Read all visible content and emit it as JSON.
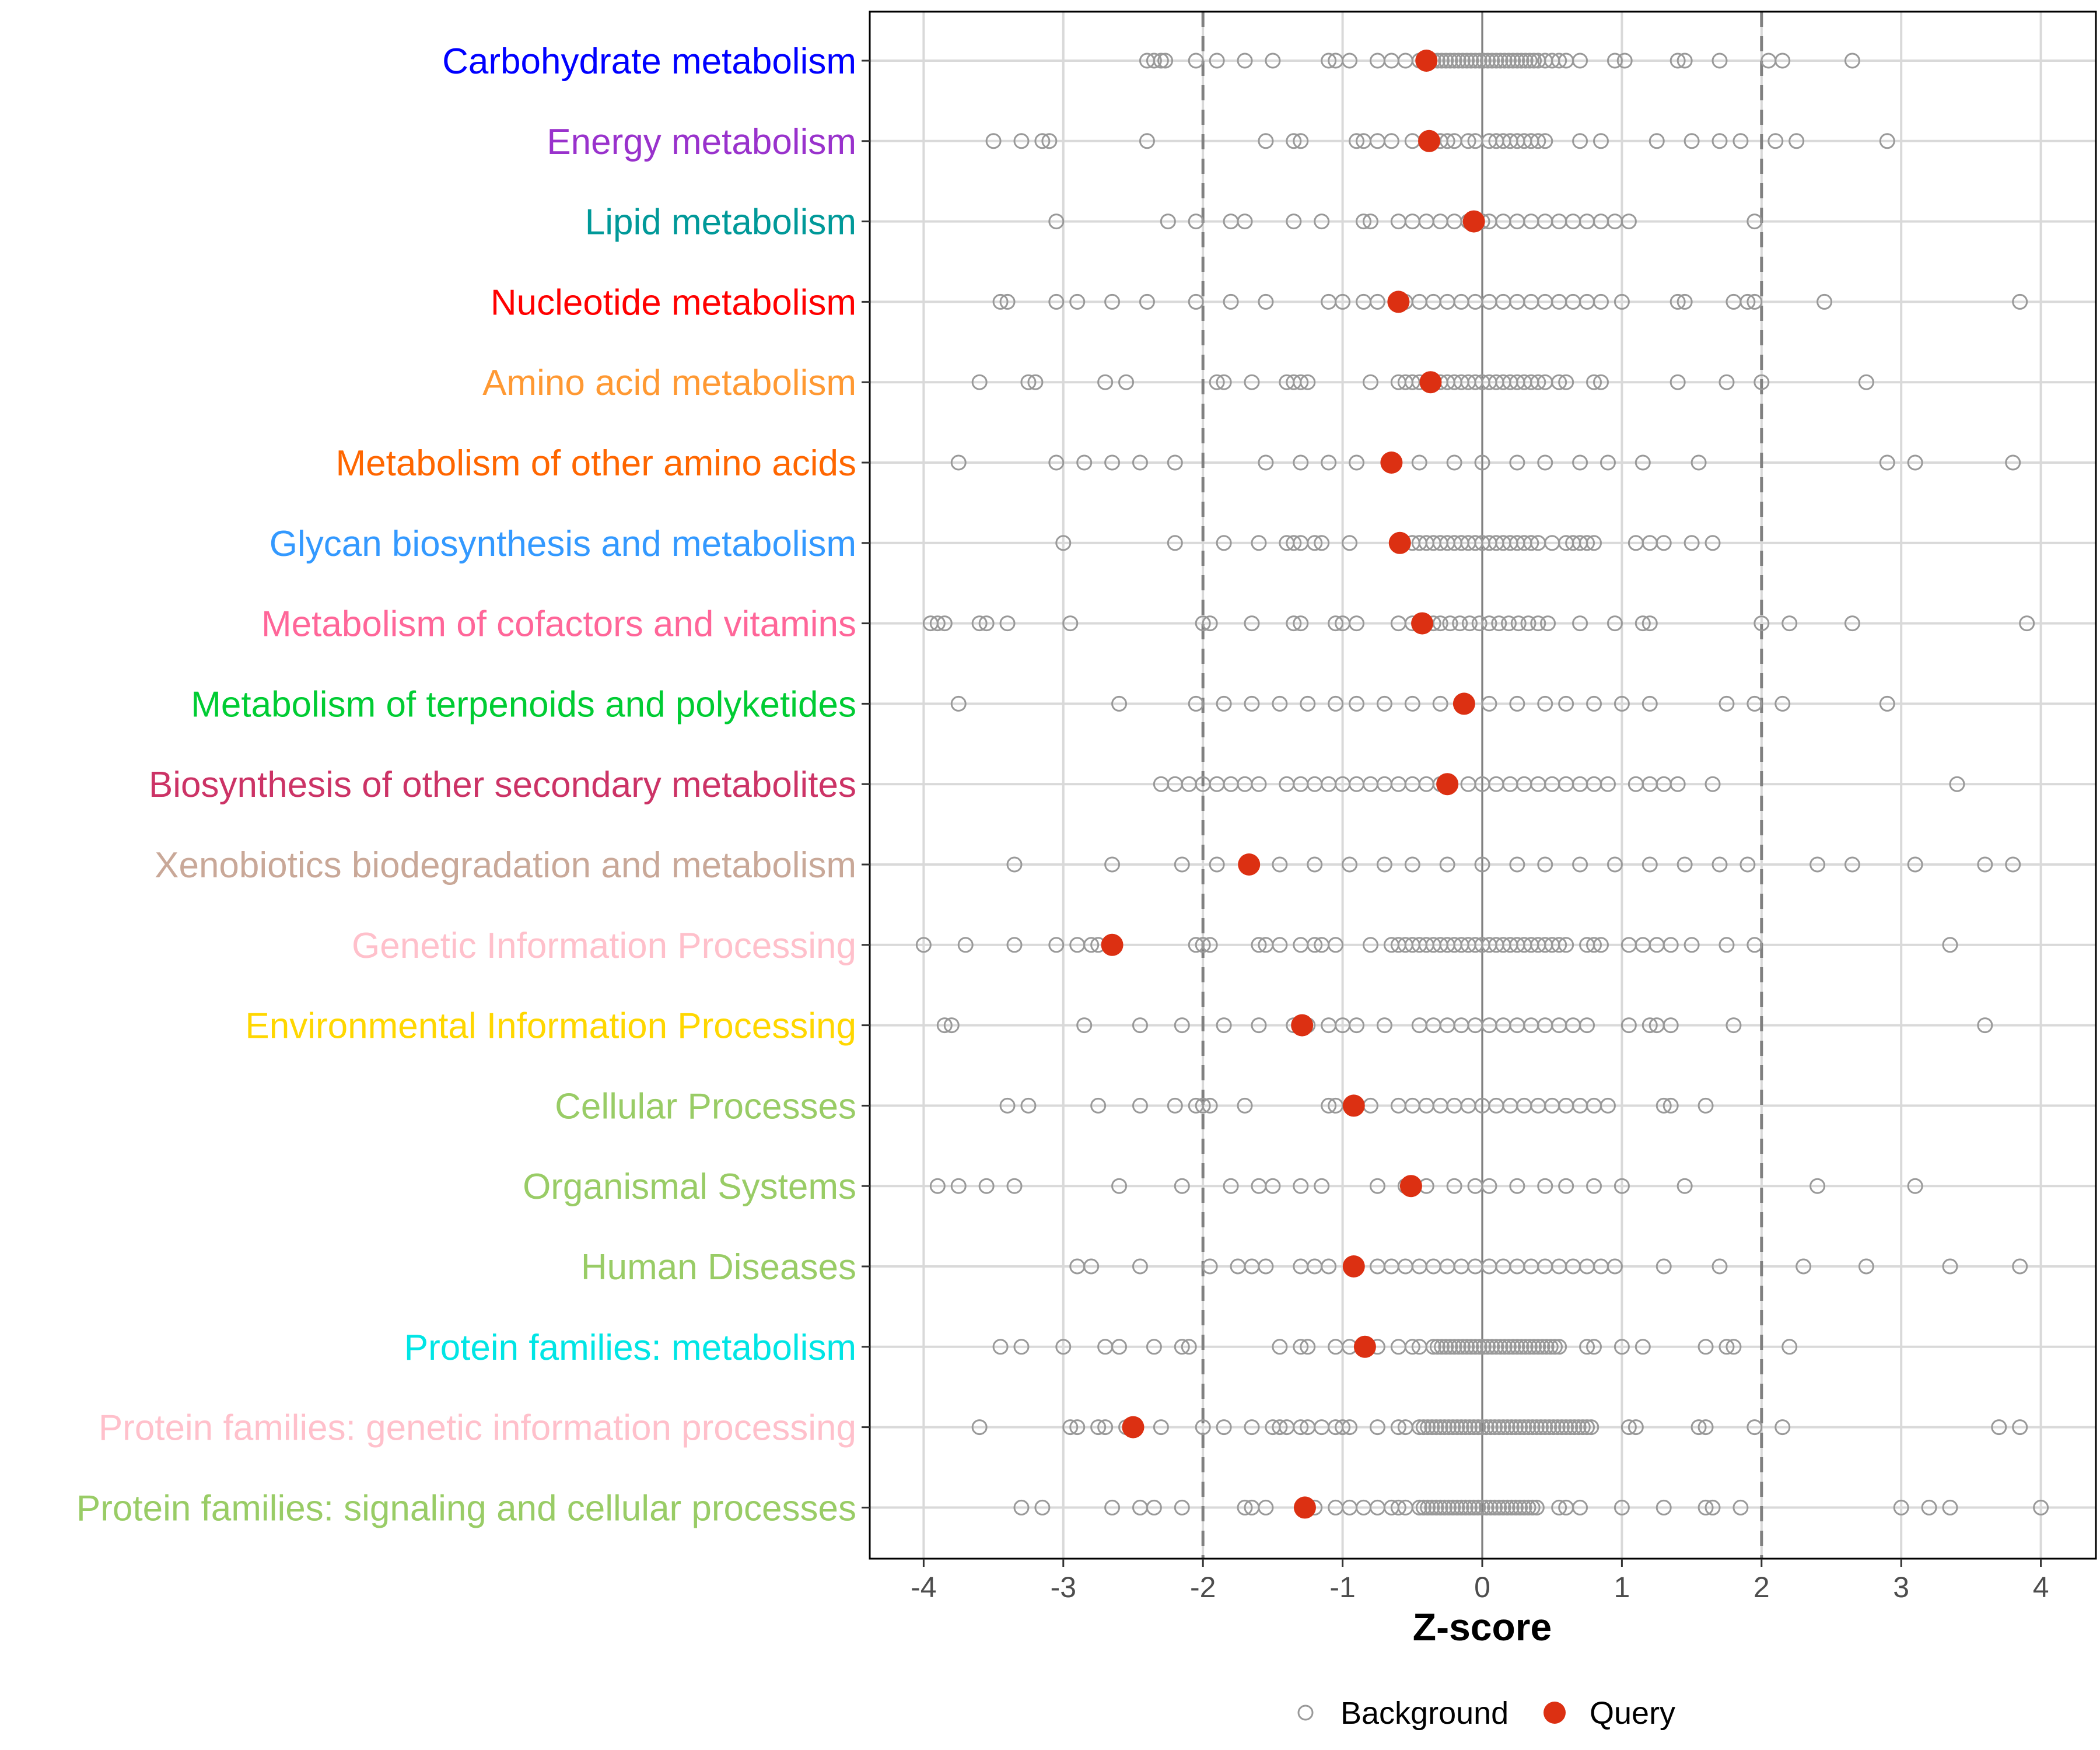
{
  "chart_data": {
    "type": "scatter",
    "title": "",
    "xlabel": "Z-score",
    "ylabel": "",
    "xlim": [
      -4.4,
      4.4
    ],
    "xticks": [
      -4,
      -3,
      -2,
      -1,
      0,
      1,
      2,
      3,
      4
    ],
    "xtick_labels": [
      "-4",
      "-3",
      "-2",
      "-1",
      "0",
      "1",
      "2",
      "3",
      "4"
    ],
    "reference_lines": {
      "dashed": [
        -2,
        2
      ],
      "solid": [
        0
      ]
    },
    "grid": true,
    "legend": {
      "placement": "bottom",
      "entries": [
        {
          "label": "Background",
          "color": "#999999",
          "shape": "open-circle"
        },
        {
          "label": "Query",
          "color": "#DC3012",
          "shape": "filled-circle"
        }
      ]
    },
    "categories": [
      {
        "name": "Carbohydrate metabolism",
        "color": "#0000FF",
        "query": -0.4,
        "background": [
          -2.4,
          -2.35,
          -2.3,
          -2.27,
          -2.05,
          -1.9,
          -1.7,
          -1.5,
          -1.1,
          -1.05,
          -0.95,
          -0.75,
          -0.65,
          -0.55,
          -0.45,
          0.45,
          0.5,
          0.55,
          0.6,
          0.7,
          0.95,
          1.02,
          1.4,
          1.45,
          1.7,
          2.05,
          2.15,
          2.65
        ],
        "background_dense": [
          [
            -0.35,
            0.4,
            0.03
          ]
        ]
      },
      {
        "name": "Energy metabolism",
        "color": "#9932CC",
        "query": -0.38,
        "background": [
          -3.5,
          -3.3,
          -3.15,
          -3.1,
          -2.4,
          -1.55,
          -1.35,
          -1.3,
          -0.9,
          -0.85,
          -0.75,
          -0.65,
          -0.5,
          -0.3,
          -0.25,
          -0.2,
          -0.1,
          -0.05,
          0.05,
          0.1,
          0.15,
          0.2,
          0.25,
          0.3,
          0.35,
          0.4,
          0.45,
          0.7,
          0.85,
          1.25,
          1.5,
          1.7,
          1.85,
          2.1,
          2.25,
          2.9
        ],
        "background_dense": []
      },
      {
        "name": "Lipid metabolism",
        "color": "#009999",
        "query": -0.06,
        "background": [
          -3.05,
          -2.25,
          -2.05,
          -1.8,
          -1.7,
          -1.35,
          -1.15,
          -0.85,
          -0.8,
          -0.6,
          -0.5,
          -0.4,
          -0.3,
          -0.2,
          -0.1,
          0.0,
          0.05,
          0.15,
          0.25,
          0.35,
          0.45,
          0.55,
          0.65,
          0.75,
          0.85,
          0.95,
          1.05,
          1.95
        ],
        "background_dense": []
      },
      {
        "name": "Nucleotide metabolism",
        "color": "#FF0000",
        "query": -0.6,
        "background": [
          -3.45,
          -3.4,
          -3.05,
          -2.9,
          -2.65,
          -2.4,
          -2.05,
          -1.8,
          -1.55,
          -1.1,
          -1.0,
          -0.85,
          -0.75,
          -0.55,
          -0.45,
          -0.35,
          -0.25,
          -0.15,
          -0.05,
          0.05,
          0.15,
          0.25,
          0.35,
          0.45,
          0.55,
          0.65,
          0.75,
          0.85,
          1.0,
          1.4,
          1.45,
          1.8,
          1.9,
          1.95,
          2.45,
          3.85
        ],
        "background_dense": []
      },
      {
        "name": "Amino acid metabolism",
        "color": "#FF9933",
        "query": -0.37,
        "background": [
          -3.6,
          -3.25,
          -3.2,
          -2.7,
          -2.55,
          -1.9,
          -1.85,
          -1.65,
          -1.4,
          -1.35,
          -1.3,
          -1.25,
          -0.8,
          -0.6,
          -0.55,
          -0.5,
          -0.45,
          0.55,
          0.6,
          0.8,
          0.85,
          1.4,
          1.75,
          2.0,
          2.75
        ],
        "background_dense": [
          [
            -0.3,
            0.45,
            0.05
          ]
        ]
      },
      {
        "name": "Metabolism of other amino acids",
        "color": "#FF6600",
        "query": -0.65,
        "background": [
          -3.75,
          -3.05,
          -2.85,
          -2.65,
          -2.45,
          -2.2,
          -1.55,
          -1.3,
          -1.1,
          -0.9,
          -0.45,
          -0.2,
          0.0,
          0.25,
          0.45,
          0.7,
          0.9,
          1.15,
          1.55,
          2.9,
          3.1,
          3.8
        ],
        "background_dense": []
      },
      {
        "name": "Glycan biosynthesis and metabolism",
        "color": "#3399FF",
        "query": -0.59,
        "background": [
          -3.0,
          -2.2,
          -1.85,
          -1.6,
          -1.4,
          -1.35,
          -1.3,
          -1.2,
          -1.15,
          -0.95,
          0.5,
          0.6,
          0.65,
          0.7,
          0.75,
          0.8,
          1.1,
          1.2,
          1.3,
          1.5,
          1.65
        ],
        "background_dense": [
          [
            -0.5,
            0.4,
            0.05
          ]
        ]
      },
      {
        "name": "Metabolism of cofactors and vitamins",
        "color": "#FF6699",
        "query": -0.43,
        "background": [
          -3.95,
          -3.9,
          -3.85,
          -3.6,
          -3.55,
          -3.4,
          -2.95,
          -2.0,
          -1.95,
          -1.65,
          -1.35,
          -1.3,
          -1.05,
          -1.0,
          -0.9,
          -0.6,
          -0.5,
          -0.35,
          0.7,
          0.95,
          1.15,
          1.2,
          2.0,
          2.2,
          2.65,
          3.9
        ],
        "background_dense": [
          [
            -0.3,
            0.5,
            0.07
          ]
        ]
      },
      {
        "name": "Metabolism of terpenoids and polyketides",
        "color": "#00CC33",
        "query": -0.13,
        "background": [
          -3.75,
          -2.6,
          -2.05,
          -1.85,
          -1.65,
          -1.45,
          -1.25,
          -1.05,
          -0.9,
          -0.7,
          -0.5,
          -0.3,
          0.05,
          0.25,
          0.45,
          0.6,
          0.8,
          1.0,
          1.2,
          1.75,
          1.95,
          2.15,
          2.9
        ],
        "background_dense": []
      },
      {
        "name": "Biosynthesis of other secondary metabolites",
        "color": "#CC3366",
        "query": -0.25,
        "background": [
          -2.3,
          -2.2,
          -2.1,
          -2.0,
          -1.9,
          -1.8,
          -1.7,
          -1.6,
          -1.4,
          -1.3,
          -1.2,
          -1.1,
          -1.0,
          -0.9,
          -0.8,
          -0.7,
          -0.6,
          -0.5,
          -0.4,
          -0.3,
          -0.1,
          0.0,
          0.1,
          0.2,
          0.3,
          0.4,
          0.5,
          0.6,
          0.7,
          0.8,
          0.9,
          1.1,
          1.2,
          1.3,
          1.4,
          1.65,
          3.4
        ],
        "background_dense": []
      },
      {
        "name": "Xenobiotics biodegradation and metabolism",
        "color": "#C9A898",
        "query": -1.67,
        "background": [
          -3.35,
          -2.65,
          -2.15,
          -1.9,
          -1.45,
          -1.2,
          -0.95,
          -0.7,
          -0.5,
          -0.25,
          0.0,
          0.25,
          0.45,
          0.7,
          0.95,
          1.2,
          1.45,
          1.7,
          1.9,
          2.4,
          2.65,
          3.1,
          3.6,
          3.8
        ],
        "background_dense": []
      },
      {
        "name": "Genetic Information Processing",
        "color": "#FFC0CB",
        "query": -2.65,
        "background": [
          -4.0,
          -3.7,
          -3.35,
          -3.05,
          -2.9,
          -2.8,
          -2.75,
          -2.05,
          -2.0,
          -1.95,
          -1.6,
          -1.55,
          -1.45,
          -1.3,
          -1.2,
          -1.15,
          -1.05,
          -0.8,
          0.75,
          0.8,
          0.85,
          1.05,
          1.15,
          1.25,
          1.35,
          1.5,
          1.75,
          1.95,
          3.35
        ],
        "background_dense": [
          [
            -0.65,
            0.6,
            0.05
          ]
        ]
      },
      {
        "name": "Environmental Information Processing",
        "color": "#FFD700",
        "query": -1.29,
        "background": [
          -3.85,
          -3.8,
          -2.85,
          -2.45,
          -2.15,
          -1.85,
          -1.6,
          -1.35,
          -1.25,
          -1.1,
          -1.0,
          -0.9,
          -0.7,
          -0.45,
          -0.35,
          -0.25,
          -0.15,
          -0.05,
          0.05,
          0.15,
          0.25,
          0.35,
          0.45,
          0.55,
          0.65,
          0.75,
          1.05,
          1.2,
          1.25,
          1.35,
          1.8,
          3.6
        ],
        "background_dense": []
      },
      {
        "name": "Cellular Processes",
        "color": "#99CC66",
        "query": -0.92,
        "background": [
          -3.4,
          -3.25,
          -2.75,
          -2.45,
          -2.2,
          -2.05,
          -2.0,
          -1.95,
          -1.7,
          -1.1,
          -1.05,
          -0.8,
          -0.6,
          -0.5,
          -0.4,
          -0.3,
          -0.2,
          -0.1,
          0.0,
          0.1,
          0.2,
          0.3,
          0.4,
          0.5,
          0.6,
          0.7,
          0.8,
          0.9,
          1.3,
          1.35,
          1.6
        ],
        "background_dense": []
      },
      {
        "name": "Organismal Systems",
        "color": "#99CC66",
        "query": -0.51,
        "background": [
          -3.9,
          -3.75,
          -3.55,
          -3.35,
          -2.6,
          -2.15,
          -1.8,
          -1.6,
          -1.5,
          -1.3,
          -1.15,
          -0.75,
          -0.55,
          -0.4,
          -0.2,
          -0.05,
          0.05,
          0.25,
          0.45,
          0.6,
          0.8,
          1.0,
          1.45,
          2.4,
          3.1
        ],
        "background_dense": []
      },
      {
        "name": "Human Diseases",
        "color": "#99CC66",
        "query": -0.92,
        "background": [
          -2.9,
          -2.8,
          -2.45,
          -1.95,
          -1.75,
          -1.65,
          -1.55,
          -1.3,
          -1.2,
          -1.1,
          -0.75,
          -0.65,
          -0.55,
          -0.45,
          -0.35,
          -0.25,
          -0.15,
          -0.05,
          0.05,
          0.15,
          0.25,
          0.35,
          0.45,
          0.55,
          0.65,
          0.75,
          0.85,
          0.95,
          1.3,
          1.7,
          2.3,
          2.75,
          3.35,
          3.85
        ],
        "background_dense": []
      },
      {
        "name": "Protein families: metabolism",
        "color": "#00E5E5",
        "query": -0.84,
        "background": [
          -3.45,
          -3.3,
          -3.0,
          -2.7,
          -2.6,
          -2.35,
          -2.15,
          -2.1,
          -1.45,
          -1.3,
          -1.25,
          -1.05,
          -0.95,
          -0.75,
          -0.6,
          -0.5,
          -0.45,
          0.75,
          0.8,
          1.0,
          1.15,
          1.6,
          1.75,
          1.8,
          2.2
        ],
        "background_dense": [
          [
            -0.35,
            0.55,
            0.03
          ]
        ]
      },
      {
        "name": "Protein families: genetic information processing",
        "color": "#FFC0CB",
        "query": -2.5,
        "background": [
          -3.6,
          -2.95,
          -2.9,
          -2.75,
          -2.7,
          -2.55,
          -2.3,
          -2.0,
          -1.85,
          -1.65,
          -1.5,
          -1.45,
          -1.4,
          -1.3,
          -1.25,
          -1.15,
          -1.05,
          -1.0,
          -0.95,
          -0.75,
          -0.6,
          -0.55,
          1.05,
          1.1,
          1.55,
          1.6,
          1.95,
          2.15,
          3.7,
          3.85
        ],
        "background_dense": [
          [
            -0.45,
            0.8,
            0.03
          ]
        ]
      },
      {
        "name": "Protein families: signaling and cellular processes",
        "color": "#99CC66",
        "query": -1.27,
        "background": [
          -3.3,
          -3.15,
          -2.65,
          -2.45,
          -2.35,
          -2.15,
          -1.7,
          -1.65,
          -1.55,
          -1.2,
          -1.05,
          -0.95,
          -0.85,
          -0.75,
          -0.65,
          -0.6,
          -0.55,
          0.55,
          0.6,
          0.7,
          1.0,
          1.3,
          1.6,
          1.65,
          1.85,
          3.0,
          3.2,
          3.35,
          4.0
        ],
        "background_dense": [
          [
            -0.45,
            0.4,
            0.03
          ]
        ]
      }
    ],
    "colors": {
      "background_stroke": "#999999",
      "query_fill": "#DC3012",
      "grid": "#D9D9D9",
      "ref_line": "#808080"
    }
  }
}
